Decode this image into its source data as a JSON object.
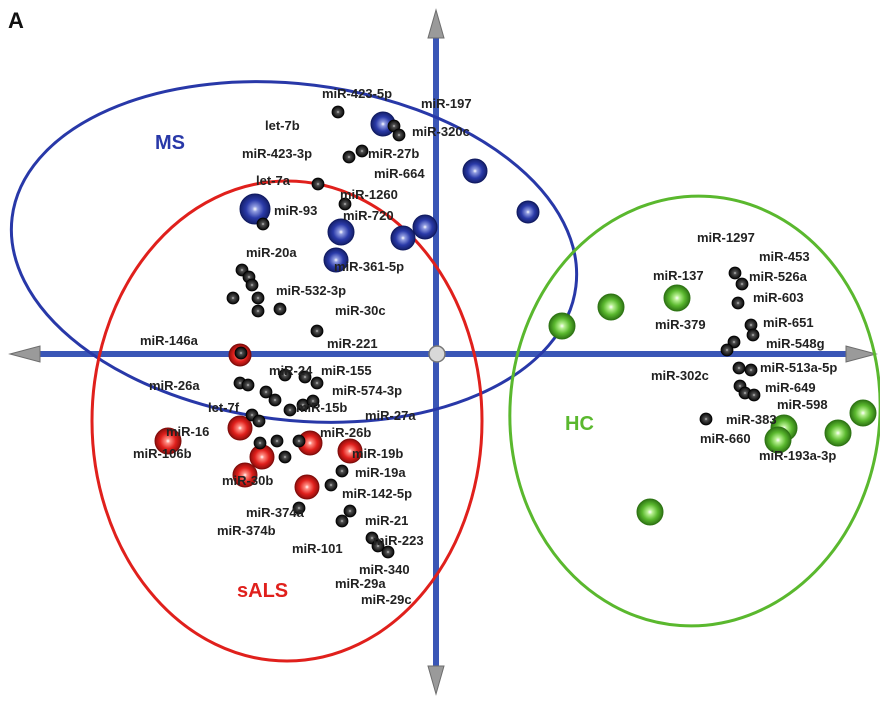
{
  "panel_label": "A",
  "colors": {
    "ms": "#2838a8",
    "sals": "#e0201c",
    "hc": "#5ab82e",
    "axis": "#3a56b6",
    "mirna": "#151515",
    "label": "#222222"
  },
  "groups": {
    "ms": "MS",
    "sals": "sALS",
    "hc": "HC"
  },
  "mirna_labels": {
    "l01": "miR-423-5p",
    "l02": "miR-197",
    "l03": "let-7b",
    "l04": "miR-320c",
    "l05": "miR-423-3p",
    "l06": "miR-27b",
    "l07": "miR-664",
    "l08": "let-7a",
    "l09": "miR-1260",
    "l10": "miR-93",
    "l11": "miR-720",
    "l12": "miR-20a",
    "l13": "miR-361-5p",
    "l14": "miR-532-3p",
    "l15": "miR-30c",
    "l16": "miR-221",
    "l17": "miR-146a",
    "l18": "miR-24",
    "l19": "miR-155",
    "l20": "miR-26a",
    "l21": "miR-574-3p",
    "l22": "let-7f",
    "l23": "miR-15b",
    "l24": "miR-27a",
    "l25": "miR-16",
    "l26": "miR-26b",
    "l27": "miR-106b",
    "l28": "miR-19b",
    "l29": "miR-19a",
    "l30": "miR-30b",
    "l31": "miR-142-5p",
    "l32": "miR-374a",
    "l33": "miR-374b",
    "l34": "miR-21",
    "l35": "miR-101",
    "l36": "miR-223",
    "l37": "miR-340",
    "l38": "miR-29a",
    "l39": "miR-29c",
    "l40": "miR-1297",
    "l41": "miR-453",
    "l42": "miR-137",
    "l43": "miR-526a",
    "l44": "miR-603",
    "l45": "miR-379",
    "l46": "miR-651",
    "l47": "miR-548g",
    "l48": "miR-302c",
    "l49": "miR-513a-5p",
    "l50": "miR-649",
    "l51": "miR-598",
    "l52": "miR-383",
    "l53": "miR-660",
    "l54": "miR-193a-3p"
  }
}
